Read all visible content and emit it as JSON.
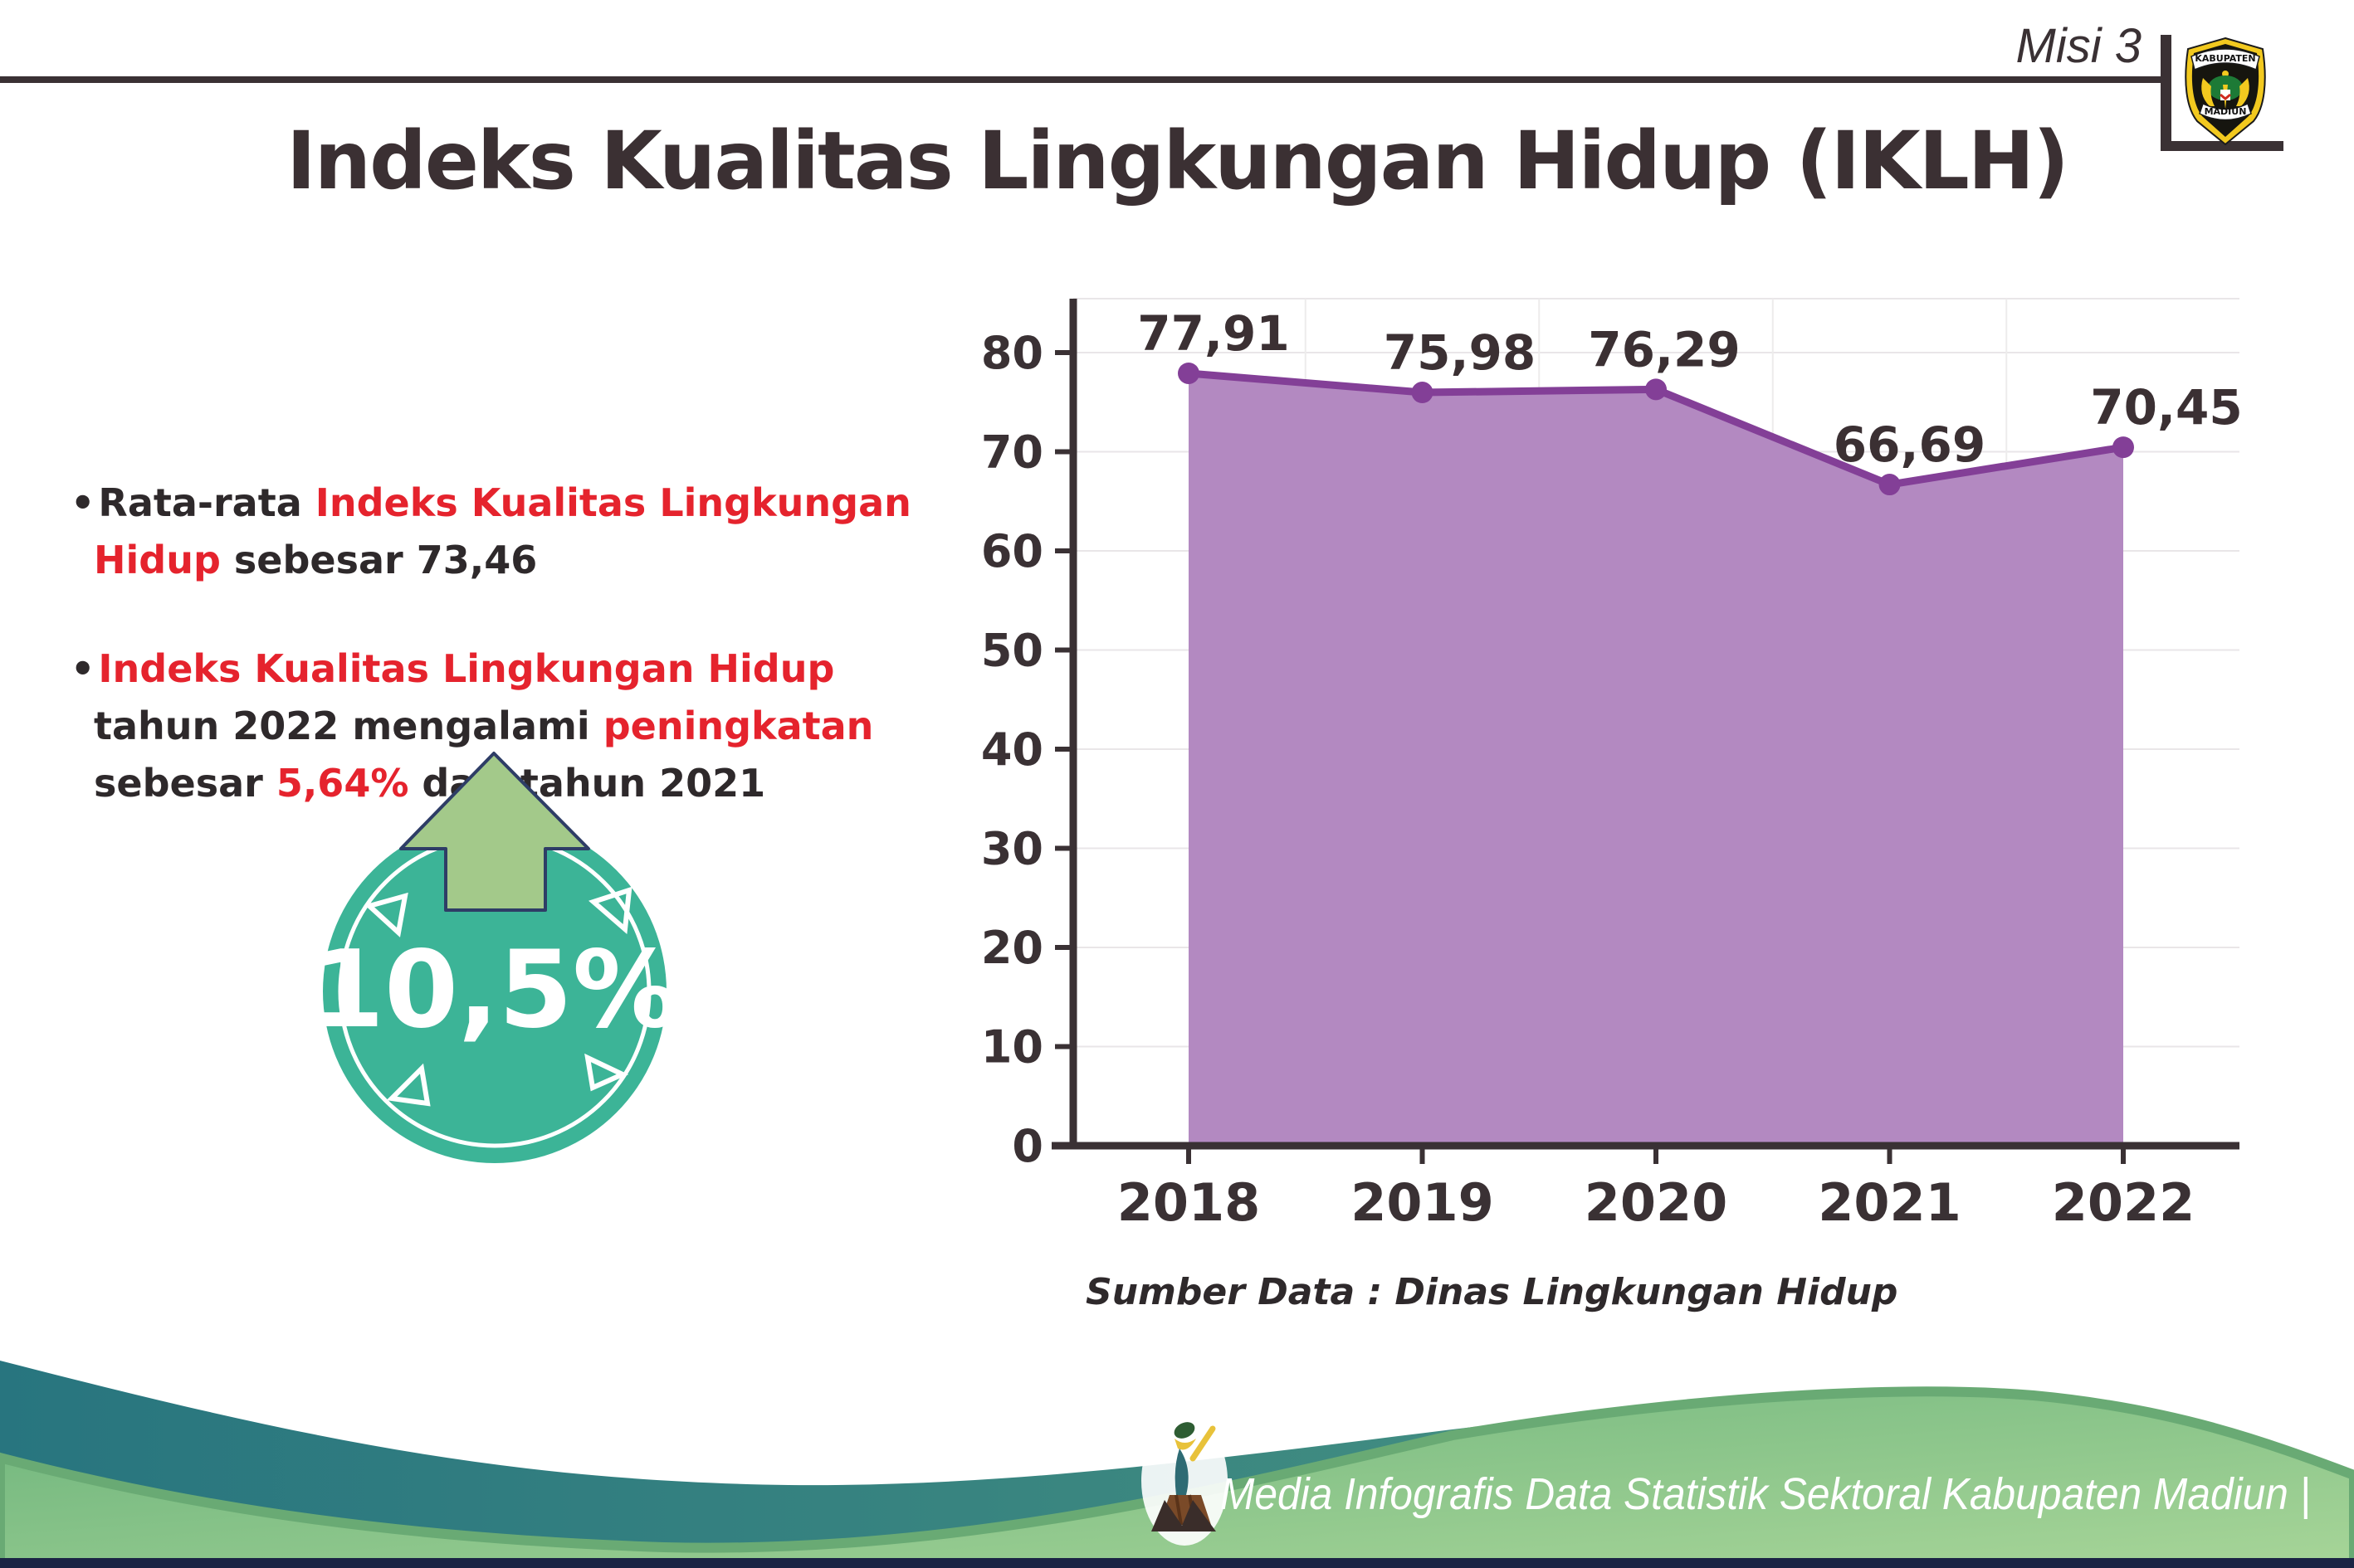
{
  "page": {
    "background": "#ffffff"
  },
  "header": {
    "misi_label": "Misi 3",
    "logo": {
      "top_text": "KABUPATEN",
      "bottom_text": "MADIUN"
    }
  },
  "title": "Indeks Kualitas Lingkungan Hidup (IKLH)",
  "bullets": [
    {
      "segments": [
        {
          "text": "Rata-rata ",
          "color": "dark"
        },
        {
          "text": "Indeks Kualitas Lingkungan Hidup",
          "color": "red"
        },
        {
          "text": " sebesar 73,46",
          "color": "dark"
        }
      ]
    },
    {
      "segments": [
        {
          "text": "Indeks Kualitas Lingkungan Hidup",
          "color": "red"
        },
        {
          "text": " tahun 2022 mengalami ",
          "color": "dark"
        },
        {
          "text": "peningkatan",
          "color": "red"
        },
        {
          "text": " sebesar ",
          "color": "dark"
        },
        {
          "text": "5,64%",
          "color": "red"
        },
        {
          "text": " dari tahun 2021",
          "color": "dark"
        }
      ]
    }
  ],
  "badge": {
    "value_label": "10,5%",
    "circle_color": "#3cb497",
    "arrow_color": "#a3c98a",
    "arrow_outline": "#2e3d66",
    "text_color": "#ffffff"
  },
  "chart_data": {
    "type": "area",
    "title": "",
    "categories": [
      "2018",
      "2019",
      "2020",
      "2021",
      "2022"
    ],
    "values": [
      77.91,
      75.98,
      76.29,
      66.69,
      70.45
    ],
    "value_labels": [
      "77,91",
      "75,98",
      "76,29",
      "66,69",
      "70,45"
    ],
    "xlabel": "",
    "ylabel": "",
    "ylim": [
      0,
      85
    ],
    "yticks": [
      0,
      10,
      20,
      30,
      40,
      50,
      60,
      70,
      80
    ],
    "grid": true,
    "legend": "none",
    "area_color": "#b389c1",
    "line_color": "#833f97",
    "label_color": "#3b3033",
    "axis_color": "#3a3134",
    "source_note": "Sumber Data : Dinas Lingkungan Hidup"
  },
  "footer": {
    "credit": "Media Infografis Data Statistik Sektoral Kabupaten Madiun |",
    "teal_left": "#28757f",
    "teal_right": "#4f9a82",
    "green_top": "#6db47c",
    "green_bottom": "#a7d598",
    "rim_color": "#69aa74",
    "base_strip": "#1b2444"
  }
}
